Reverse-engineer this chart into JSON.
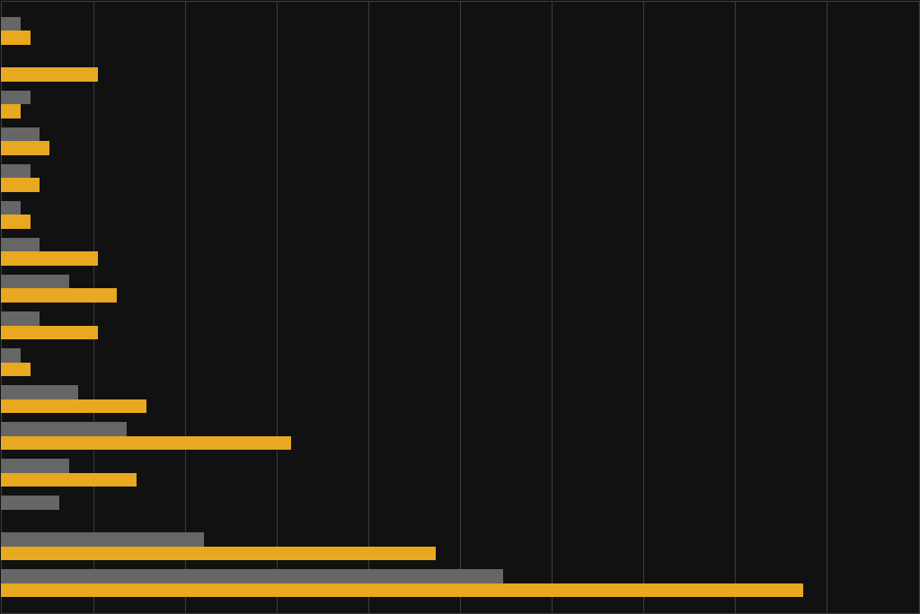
{
  "gray_values": [
    2,
    0,
    3,
    4,
    3,
    2,
    4,
    7,
    4,
    2,
    8,
    13,
    7,
    6,
    21,
    52
  ],
  "gold_values": [
    3,
    10,
    2,
    5,
    4,
    3,
    10,
    12,
    10,
    3,
    15,
    30,
    14,
    0,
    45,
    83
  ],
  "background_color": "#111111",
  "bar_color_gray": "#666666",
  "bar_color_gold": "#E8A820",
  "xlim": [
    0,
    95
  ],
  "grid_color": "#3a3a3a",
  "bar_height": 0.38,
  "figsize": [
    10.24,
    6.84
  ],
  "dpi": 100,
  "num_gridlines": 10
}
